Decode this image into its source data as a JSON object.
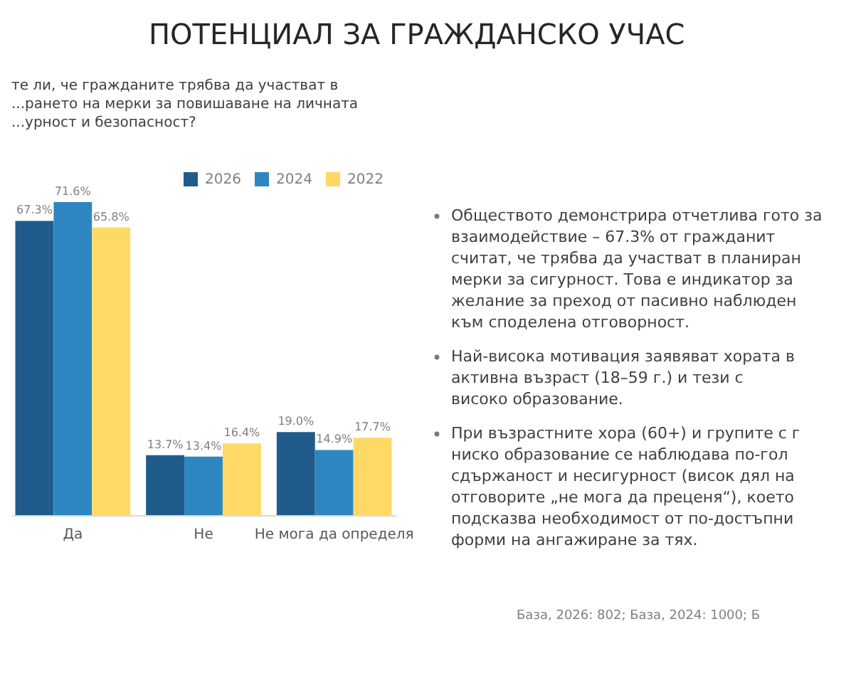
{
  "chart_data": {
    "type": "bar",
    "title": "ПОТЕНЦИАЛ ЗА ГРАЖДАНСКО УЧАС",
    "subtitle": "те ли, че гражданите трябва да участват в ...рането на мерки за повишаване на личната ...урност и безопасност?",
    "categories": [
      "Да",
      "Не",
      "Не мога да определя"
    ],
    "series": [
      {
        "name": "2026",
        "color": "#1f5c8b",
        "values": [
          67.3,
          13.7,
          19.0
        ],
        "value_labels": [
          "67.3%",
          "13.7%",
          "19.0%"
        ]
      },
      {
        "name": "2024",
        "color": "#2e86c1",
        "values": [
          71.6,
          13.4,
          14.9
        ],
        "value_labels": [
          "71.6%",
          "13.4%",
          "14.9%"
        ]
      },
      {
        "name": "2022",
        "color": "#ffd966",
        "values": [
          65.8,
          16.4,
          17.7
        ],
        "value_labels": [
          "65.8%",
          "16.4%",
          "17.7%"
        ]
      }
    ],
    "legend": "top right",
    "annotations": [
      "Обществото демонстрира отчетлива гото за взаимодействие – 67.3% от гражданит считат, че трябва да участват в планиран мерки за сигурност. Това е индикатор за желание за преход от пасивно наблюден към споделена отговорност.",
      "Най-висока мотивация заявяват хората в активна възраст (18–59 г.) и тези с високо образование.",
      "При възрастните хора (60+) и групите с г ниско образование се наблюдава по-гол сдържаност и несигурност (висок дял на отговорите „не мога да преценя“), което подсказва необходимост от по-достъпни форми на ангажиране за тях.",
      "База, 2026: 802; База, 2024: 1000; Б"
    ]
  }
}
